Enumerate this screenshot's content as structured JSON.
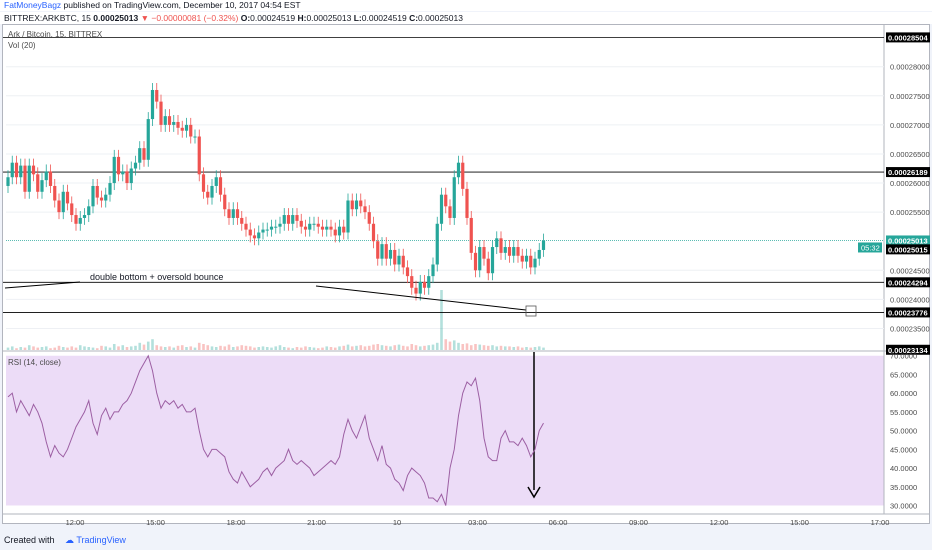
{
  "header": {
    "author": "FatMoneyBagz",
    "published_text": "published on TradingView.com, December 10, 2017 04:54 EST",
    "symbol_info": "BITTREX:ARKBTC, 15",
    "price": "0.00025013",
    "change": "▼ −0.00000081 (−0.32%)",
    "ohlc_o_label": "O:",
    "ohlc_o": "0.00024519",
    "ohlc_h_label": "H:",
    "ohlc_h": "0.00025013",
    "ohlc_l_label": "L:",
    "ohlc_l": "0.00024519",
    "ohlc_c_label": "C:",
    "ohlc_c": "0.00025013"
  },
  "footer": {
    "created_with": "Created with",
    "brand": "TradingView"
  },
  "colors": {
    "up": "#26a69a",
    "down": "#ef5350",
    "rsi_line": "#9c5fa3",
    "rsi_band": "#ecdcf7"
  },
  "chart_data": [
    {
      "type": "candlestick",
      "title": "Ark / Bitcoin, 15, BITTREX",
      "volume_label": "Vol (20)",
      "y_ticks": [
        "0.00028000",
        "0.00027500",
        "0.00027000",
        "0.00026500",
        "0.00026000",
        "0.00025500",
        "0.00024500",
        "0.00024000",
        "0.00023500"
      ],
      "ylim": [
        0.0002313,
        0.000287
      ],
      "x_ticks": [
        "12:00",
        "15:00",
        "18:00",
        "21:00",
        "10",
        "03:00",
        "06:00",
        "09:00",
        "12:00",
        "15:00",
        "17:00"
      ],
      "hlines": [
        {
          "value": 0.00028504,
          "label": "0.00028504"
        },
        {
          "value": 0.00026189,
          "label": "0.00026189"
        },
        {
          "value": 0.00024294,
          "label": "0.00024294"
        },
        {
          "value": 0.00023776,
          "label": "0.00023776"
        }
      ],
      "price_labels": [
        {
          "value": 0.00025013,
          "label": "0.00025013",
          "extra": "05:32"
        },
        {
          "value": 0.00025015,
          "label": "0.00025015"
        },
        {
          "value": 0.00023134,
          "label": "0.00023134"
        }
      ],
      "annotation": "double bottom + oversold bounce",
      "closes": [
        0.000261,
        0.0002635,
        0.000261,
        0.000263,
        0.0002585,
        0.000263,
        0.0002615,
        0.0002585,
        0.0002605,
        0.000262,
        0.0002595,
        0.000257,
        0.000255,
        0.0002585,
        0.0002565,
        0.0002545,
        0.000253,
        0.000254,
        0.0002545,
        0.000256,
        0.0002595,
        0.0002575,
        0.000257,
        0.000258,
        0.00026,
        0.0002645,
        0.0002615,
        0.000262,
        0.00026,
        0.0002625,
        0.0002635,
        0.000266,
        0.000264,
        0.000271,
        0.000276,
        0.000274,
        0.00027,
        0.0002715,
        0.00027,
        0.0002705,
        0.0002695,
        0.000269,
        0.00027,
        0.000268,
        0.000268,
        0.0002615,
        0.0002585,
        0.0002575,
        0.0002595,
        0.000261,
        0.000258,
        0.0002555,
        0.000254,
        0.0002555,
        0.000254,
        0.000253,
        0.000252,
        0.000251,
        0.0002505,
        0.0002515,
        0.000252,
        0.000252,
        0.0002525,
        0.0002525,
        0.000253,
        0.0002545,
        0.000253,
        0.0002545,
        0.0002535,
        0.0002525,
        0.000252,
        0.000253,
        0.000253,
        0.0002525,
        0.000252,
        0.0002525,
        0.000252,
        0.000251,
        0.0002525,
        0.0002515,
        0.000257,
        0.0002555,
        0.000257,
        0.000256,
        0.000255,
        0.000253,
        0.00025,
        0.000247,
        0.0002495,
        0.000247,
        0.0002485,
        0.000246,
        0.0002475,
        0.0002455,
        0.000244,
        0.000242,
        0.000241,
        0.000243,
        0.000242,
        0.000244,
        0.000246,
        0.000253,
        0.000258,
        0.000256,
        0.000254,
        0.000261,
        0.0002635,
        0.000259,
        0.000254,
        0.000248,
        0.000245,
        0.000249,
        0.000247,
        0.0002445,
        0.000249,
        0.0002505,
        0.000248,
        0.000249,
        0.0002475,
        0.000249,
        0.0002475,
        0.0002465,
        0.0002475,
        0.0002455,
        0.000247,
        0.0002485,
        0.0002501
      ],
      "volumes": [
        0.2,
        0.3,
        0.15,
        0.25,
        0.2,
        0.4,
        0.3,
        0.2,
        0.25,
        0.3,
        0.15,
        0.2,
        0.35,
        0.25,
        0.2,
        0.3,
        0.2,
        0.4,
        0.3,
        0.25,
        0.2,
        0.15,
        0.35,
        0.3,
        0.2,
        0.5,
        0.3,
        0.4,
        0.25,
        0.3,
        0.35,
        0.6,
        0.45,
        0.7,
        0.9,
        0.4,
        0.3,
        0.25,
        0.3,
        0.2,
        0.35,
        0.4,
        0.25,
        0.3,
        0.2,
        0.6,
        0.5,
        0.4,
        0.3,
        0.25,
        0.35,
        0.3,
        0.45,
        0.25,
        0.3,
        0.4,
        0.35,
        0.3,
        0.2,
        0.25,
        0.3,
        0.25,
        0.2,
        0.3,
        0.4,
        0.25,
        0.2,
        0.15,
        0.25,
        0.2,
        0.3,
        0.25,
        0.2,
        0.15,
        0.2,
        0.3,
        0.25,
        0.2,
        0.3,
        0.35,
        0.45,
        0.3,
        0.35,
        0.4,
        0.3,
        0.35,
        0.45,
        0.5,
        0.4,
        0.35,
        0.3,
        0.4,
        0.45,
        0.35,
        0.3,
        0.5,
        0.4,
        0.3,
        0.35,
        0.4,
        0.45,
        0.6,
        5.0,
        0.9,
        0.7,
        0.8,
        0.6,
        0.5,
        0.55,
        0.4,
        0.5,
        0.45,
        0.4,
        0.35,
        0.4,
        0.3,
        0.35,
        0.3,
        0.3,
        0.25,
        0.3,
        0.2,
        0.25,
        0.2,
        0.25,
        0.3,
        0.2
      ]
    },
    {
      "type": "line",
      "title": "RSI (14, close)",
      "y_ticks": [
        "70.0000",
        "65.0000",
        "60.0000",
        "55.0000",
        "50.0000",
        "45.0000",
        "40.0000",
        "35.0000",
        "30.0000"
      ],
      "ylim": [
        28,
        71
      ],
      "band": [
        30,
        70
      ],
      "values": [
        59,
        60,
        55,
        58,
        56,
        54,
        57,
        55,
        52,
        47,
        43,
        46,
        44,
        43,
        45,
        48,
        51,
        53,
        55,
        58,
        52,
        49,
        54,
        56,
        53,
        55,
        55,
        57,
        58,
        60,
        63,
        66,
        68,
        70,
        66,
        60,
        56,
        58,
        57,
        58,
        56,
        57,
        55,
        55,
        56,
        50,
        45,
        43,
        45,
        45,
        44,
        43,
        39,
        37,
        36,
        39,
        37,
        35,
        36,
        37,
        39,
        40,
        38,
        40,
        41,
        42,
        45,
        42,
        41,
        42,
        41,
        40,
        38,
        39,
        40,
        41,
        42,
        41,
        43,
        49,
        53,
        50,
        48,
        51,
        54,
        48,
        45,
        42,
        46,
        41,
        40,
        37,
        36,
        34,
        38,
        40,
        39,
        38,
        36,
        32,
        32,
        31,
        33,
        30,
        40,
        45,
        54,
        60,
        63,
        62,
        64,
        58,
        48,
        43,
        42,
        42,
        48,
        50,
        47,
        47,
        46,
        48,
        46,
        43,
        45,
        50,
        52
      ]
    }
  ]
}
